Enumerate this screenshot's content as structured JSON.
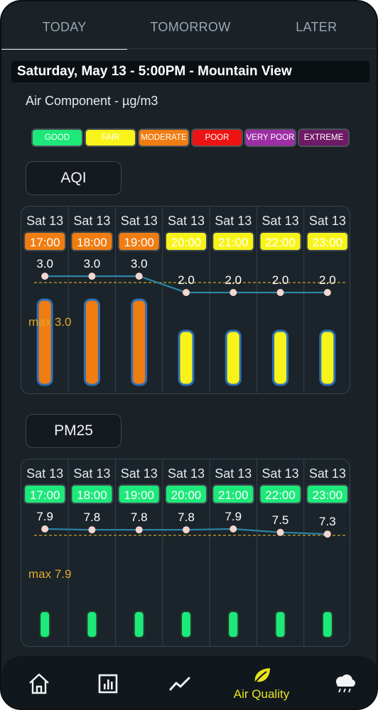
{
  "tabs": [
    "TODAY",
    "TOMORROW",
    "LATER"
  ],
  "header": {
    "title": "Saturday, May 13 - 5:00PM - Mountain View"
  },
  "subtitle": "Air Component - µg/m3",
  "legend": [
    {
      "label": "GOOD",
      "bg": "#1de97a",
      "fg": "#ffffff"
    },
    {
      "label": "FAIR",
      "bg": "#f8f41a",
      "fg": "#ffffff"
    },
    {
      "label": "MODERATE",
      "bg": "#f07d12",
      "fg": "#ffffff"
    },
    {
      "label": "POOR",
      "bg": "#ee1313",
      "fg": "#ffffff"
    },
    {
      "label": "VERY POOR",
      "bg": "#9d2ea6",
      "fg": "#ffffff"
    },
    {
      "label": "EXTREME",
      "bg": "#6f1a66",
      "fg": "#ffffff"
    }
  ],
  "sections": [
    {
      "name": "AQI",
      "max_label": "max 3.0",
      "columns": [
        {
          "date": "Sat 13",
          "time": "17:00",
          "value": "3.0",
          "level": 3.0,
          "color": "#f07d12"
        },
        {
          "date": "Sat 13",
          "time": "18:00",
          "value": "3.0",
          "level": 3.0,
          "color": "#f07d12"
        },
        {
          "date": "Sat 13",
          "time": "19:00",
          "value": "3.0",
          "level": 3.0,
          "color": "#f07d12"
        },
        {
          "date": "Sat 13",
          "time": "20:00",
          "value": "2.0",
          "level": 2.0,
          "color": "#f8f41a"
        },
        {
          "date": "Sat 13",
          "time": "21:00",
          "value": "2.0",
          "level": 2.0,
          "color": "#f8f41a"
        },
        {
          "date": "Sat 13",
          "time": "22:00",
          "value": "2.0",
          "level": 2.0,
          "color": "#f8f41a"
        },
        {
          "date": "Sat 13",
          "time": "23:00",
          "value": "2.0",
          "level": 2.0,
          "color": "#f8f41a"
        }
      ]
    },
    {
      "name": "PM25",
      "max_label": "max 7.9",
      "columns": [
        {
          "date": "Sat 13",
          "time": "17:00",
          "value": "7.9",
          "level": 7.9,
          "color": "#1de97a"
        },
        {
          "date": "Sat 13",
          "time": "18:00",
          "value": "7.8",
          "level": 7.8,
          "color": "#1de97a"
        },
        {
          "date": "Sat 13",
          "time": "19:00",
          "value": "7.8",
          "level": 7.8,
          "color": "#1de97a"
        },
        {
          "date": "Sat 13",
          "time": "20:00",
          "value": "7.8",
          "level": 7.8,
          "color": "#1de97a"
        },
        {
          "date": "Sat 13",
          "time": "21:00",
          "value": "7.9",
          "level": 7.9,
          "color": "#1de97a"
        },
        {
          "date": "Sat 13",
          "time": "22:00",
          "value": "7.5",
          "level": 7.5,
          "color": "#1de97a"
        },
        {
          "date": "Sat 13",
          "time": "23:00",
          "value": "7.3",
          "level": 7.3,
          "color": "#1de97a"
        }
      ]
    }
  ],
  "nav": {
    "items": [
      {
        "icon": "home-icon"
      },
      {
        "icon": "bar-chart-icon"
      },
      {
        "icon": "trend-line-icon"
      },
      {
        "icon": "leaf-icon",
        "label": "Air Quality",
        "active": true
      },
      {
        "icon": "cloud-rain-icon"
      }
    ]
  },
  "colors": {
    "accent": "#e9e41f",
    "background": "#1a2228",
    "line": "#2a86a6"
  }
}
